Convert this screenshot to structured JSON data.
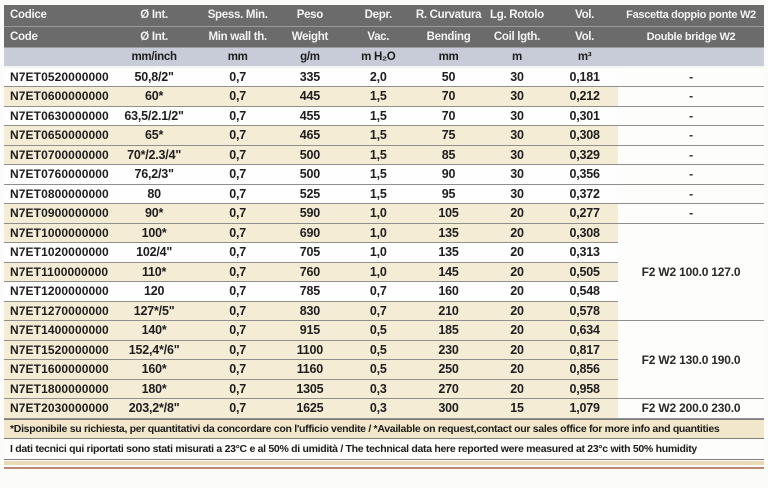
{
  "table": {
    "columns": [
      {
        "id": "codice",
        "line1": "Codice",
        "line2": "Code",
        "unit": ""
      },
      {
        "id": "diam",
        "line1": "Ø Int.",
        "line2": "Ø Int.",
        "unit": "mm/inch"
      },
      {
        "id": "wall",
        "line1": "Spess. Min.",
        "line2": "Min wall th.",
        "unit": "mm"
      },
      {
        "id": "weight",
        "line1": "Peso",
        "line2": "Weight",
        "unit": "g/m"
      },
      {
        "id": "vacuum",
        "line1": "Depr.",
        "line2": "Vac.",
        "unit": "m H₂O"
      },
      {
        "id": "bending",
        "line1": "R. Curvatura",
        "line2": "Bending",
        "unit": "mm"
      },
      {
        "id": "coil",
        "line1": "Lg. Rotolo",
        "line2": "Coil lgth.",
        "unit": "m"
      },
      {
        "id": "volume",
        "line1": "Vol.",
        "line2": "Vol.",
        "unit": "m³"
      },
      {
        "id": "clamp",
        "line1": "Fascetta doppio ponte W2",
        "line2": "Double bridge W2",
        "unit": ""
      }
    ],
    "rows": [
      {
        "code": "N7ET0520000000",
        "diam": "50,8/2\"",
        "wall": "0,7",
        "weight": "335",
        "vac": "2,0",
        "bend": "50",
        "coil": "30",
        "vol": "0,181",
        "shaded": false
      },
      {
        "code": "N7ET0600000000",
        "diam": "60*",
        "wall": "0,7",
        "weight": "445",
        "vac": "1,5",
        "bend": "70",
        "coil": "30",
        "vol": "0,212",
        "shaded": true
      },
      {
        "code": "N7ET0630000000",
        "diam": "63,5/2.1/2\"",
        "wall": "0,7",
        "weight": "455",
        "vac": "1,5",
        "bend": "70",
        "coil": "30",
        "vol": "0,301",
        "shaded": false
      },
      {
        "code": "N7ET0650000000",
        "diam": "65*",
        "wall": "0,7",
        "weight": "465",
        "vac": "1,5",
        "bend": "75",
        "coil": "30",
        "vol": "0,308",
        "shaded": true
      },
      {
        "code": "N7ET0700000000",
        "diam": "70*/2.3/4\"",
        "wall": "0,7",
        "weight": "500",
        "vac": "1,5",
        "bend": "85",
        "coil": "30",
        "vol": "0,329",
        "shaded": true
      },
      {
        "code": "N7ET0760000000",
        "diam": "76,2/3\"",
        "wall": "0,7",
        "weight": "500",
        "vac": "1,5",
        "bend": "90",
        "coil": "30",
        "vol": "0,356",
        "shaded": false
      },
      {
        "code": "N7ET0800000000",
        "diam": "80",
        "wall": "0,7",
        "weight": "525",
        "vac": "1,5",
        "bend": "95",
        "coil": "30",
        "vol": "0,372",
        "shaded": false
      },
      {
        "code": "N7ET0900000000",
        "diam": "90*",
        "wall": "0,7",
        "weight": "590",
        "vac": "1,0",
        "bend": "105",
        "coil": "20",
        "vol": "0,277",
        "shaded": true
      },
      {
        "code": "N7ET1000000000",
        "diam": "100*",
        "wall": "0,7",
        "weight": "690",
        "vac": "1,0",
        "bend": "135",
        "coil": "20",
        "vol": "0,308",
        "shaded": true
      },
      {
        "code": "N7ET1020000000",
        "diam": "102/4\"",
        "wall": "0,7",
        "weight": "705",
        "vac": "1,0",
        "bend": "135",
        "coil": "20",
        "vol": "0,313",
        "shaded": false
      },
      {
        "code": "N7ET1100000000",
        "diam": "110*",
        "wall": "0,7",
        "weight": "760",
        "vac": "1,0",
        "bend": "145",
        "coil": "20",
        "vol": "0,505",
        "shaded": true
      },
      {
        "code": "N7ET1200000000",
        "diam": "120",
        "wall": "0,7",
        "weight": "785",
        "vac": "0,7",
        "bend": "160",
        "coil": "20",
        "vol": "0,548",
        "shaded": false
      },
      {
        "code": "N7ET1270000000",
        "diam": "127*/5\"",
        "wall": "0,7",
        "weight": "830",
        "vac": "0,7",
        "bend": "210",
        "coil": "20",
        "vol": "0,578",
        "shaded": true
      },
      {
        "code": "N7ET1400000000",
        "diam": "140*",
        "wall": "0,7",
        "weight": "915",
        "vac": "0,5",
        "bend": "185",
        "coil": "20",
        "vol": "0,634",
        "shaded": true
      },
      {
        "code": "N7ET1520000000",
        "diam": "152,4*/6\"",
        "wall": "0,7",
        "weight": "1100",
        "vac": "0,5",
        "bend": "230",
        "coil": "20",
        "vol": "0,817",
        "shaded": true
      },
      {
        "code": "N7ET1600000000",
        "diam": "160*",
        "wall": "0,7",
        "weight": "1160",
        "vac": "0,5",
        "bend": "250",
        "coil": "20",
        "vol": "0,856",
        "shaded": true
      },
      {
        "code": "N7ET1800000000",
        "diam": "180*",
        "wall": "0,7",
        "weight": "1305",
        "vac": "0,3",
        "bend": "270",
        "coil": "20",
        "vol": "0,958",
        "shaded": true
      },
      {
        "code": "N7ET2030000000",
        "diam": "203,2*/8\"",
        "wall": "0,7",
        "weight": "1625",
        "vac": "0,3",
        "bend": "300",
        "coil": "15",
        "vol": "1,079",
        "shaded": true
      }
    ],
    "w2_cells": [
      {
        "row": 0,
        "span": 1,
        "label": "-"
      },
      {
        "row": 1,
        "span": 1,
        "label": "-"
      },
      {
        "row": 2,
        "span": 1,
        "label": "-"
      },
      {
        "row": 3,
        "span": 1,
        "label": "-"
      },
      {
        "row": 4,
        "span": 1,
        "label": "-"
      },
      {
        "row": 5,
        "span": 1,
        "label": "-"
      },
      {
        "row": 6,
        "span": 1,
        "label": "-"
      },
      {
        "row": 7,
        "span": 1,
        "label": "-"
      },
      {
        "row": 8,
        "span": 5,
        "label": "F2 W2 100.0 127.0"
      },
      {
        "row": 13,
        "span": 4,
        "label": "F2 W2 130.0 190.0"
      },
      {
        "row": 17,
        "span": 1,
        "label": "F2 W2 200.0 230.0"
      }
    ]
  },
  "footnotes": {
    "line1": "*Disponibile su richiesta, per quantitativi da concordare con l'ufficio vendite /  *Available on request,contact our sales office for more info and quantities",
    "line2": "I dati tecnici qui riportati sono stati misurati a 23°C e al 50% di umidità / The technical data here reported were measured at 23°c with 50% humidity"
  },
  "colors": {
    "header_bg": "#6b6b6b",
    "units_bg": "#c7ccd8",
    "row_highlight": "#f5ecd6",
    "footnote_bg": "#f3e7cb"
  }
}
